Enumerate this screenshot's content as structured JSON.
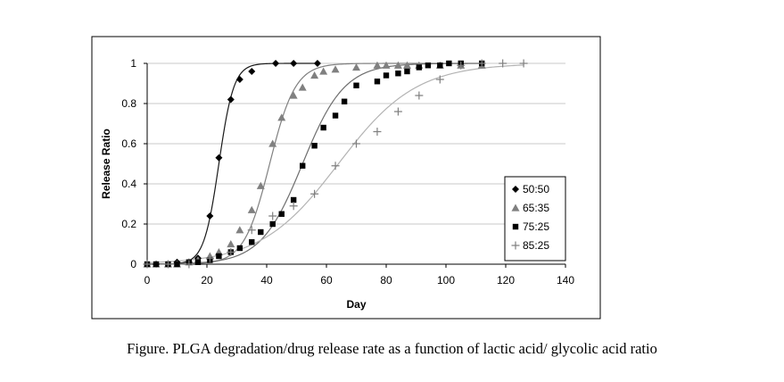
{
  "caption": "Figure. PLGA degradation/drug release rate as a function of lactic acid/ glycolic acid ratio",
  "chart_data": {
    "type": "scatter",
    "title": "",
    "xlabel": "Day",
    "ylabel": "Release Ratio",
    "xlim": [
      0,
      140
    ],
    "ylim": [
      0,
      1
    ],
    "x_ticks": [
      "0",
      "20",
      "40",
      "60",
      "80",
      "100",
      "120",
      "140"
    ],
    "y_ticks": [
      "0",
      "0.2",
      "0.4",
      "0.6",
      "0.8",
      "1"
    ],
    "grid": "horizontal",
    "legend_position": "bottom-right",
    "series": [
      {
        "name": "50:50",
        "marker": "diamond",
        "color": "#000000",
        "fit_color": "#1a1a1a",
        "x": [
          0,
          3,
          7,
          10,
          14,
          17,
          21,
          24,
          28,
          31,
          35,
          43,
          49,
          57
        ],
        "y": [
          0,
          0,
          0,
          0.01,
          0.01,
          0.03,
          0.24,
          0.53,
          0.82,
          0.92,
          0.96,
          1.0,
          1.0,
          1.0
        ],
        "fit": {
          "midpoint": 24,
          "scale": 2.5
        }
      },
      {
        "name": "65:35",
        "marker": "triangle",
        "color": "#808080",
        "fit_color": "#808080",
        "x": [
          0,
          3,
          7,
          10,
          14,
          17,
          21,
          24,
          28,
          31,
          35,
          38,
          42,
          45,
          49,
          52,
          56,
          59,
          63,
          70,
          77,
          80,
          84,
          87,
          91,
          98,
          105,
          112
        ],
        "y": [
          0,
          0,
          0,
          0,
          0.01,
          0.02,
          0.04,
          0.06,
          0.1,
          0.17,
          0.27,
          0.39,
          0.6,
          0.73,
          0.84,
          0.88,
          0.94,
          0.96,
          0.97,
          0.98,
          0.99,
          0.99,
          0.99,
          0.99,
          0.99,
          0.99,
          0.99,
          0.99
        ],
        "fit": {
          "midpoint": 41,
          "scale": 4.3
        }
      },
      {
        "name": "75:25",
        "marker": "square",
        "color": "#000000",
        "fit_color": "#6e6e6e",
        "x": [
          0,
          3,
          7,
          10,
          14,
          17,
          21,
          24,
          28,
          31,
          35,
          38,
          42,
          45,
          49,
          52,
          56,
          59,
          63,
          66,
          70,
          77,
          80,
          84,
          87,
          91,
          94,
          98,
          101,
          105,
          112
        ],
        "y": [
          0,
          0,
          0,
          0,
          0.01,
          0.01,
          0.02,
          0.04,
          0.06,
          0.08,
          0.11,
          0.16,
          0.2,
          0.25,
          0.32,
          0.49,
          0.59,
          0.68,
          0.74,
          0.81,
          0.89,
          0.91,
          0.94,
          0.95,
          0.96,
          0.98,
          0.99,
          0.99,
          1.0,
          1.0,
          1.0
        ],
        "fit": {
          "midpoint": 52,
          "scale": 7
        }
      },
      {
        "name": "85:25",
        "marker": "plus",
        "color": "#808080",
        "fit_color": "#b3b3b3",
        "x": [
          0,
          7,
          14,
          21,
          28,
          35,
          42,
          49,
          56,
          63,
          70,
          77,
          84,
          91,
          98,
          105,
          112,
          119,
          126
        ],
        "y": [
          0,
          0,
          0,
          0.03,
          0.06,
          0.17,
          0.24,
          0.29,
          0.35,
          0.49,
          0.6,
          0.66,
          0.76,
          0.84,
          0.92,
          0.99,
          1.0,
          1.0,
          1.0
        ],
        "fit": {
          "midpoint": 64,
          "scale": 13
        }
      }
    ]
  }
}
